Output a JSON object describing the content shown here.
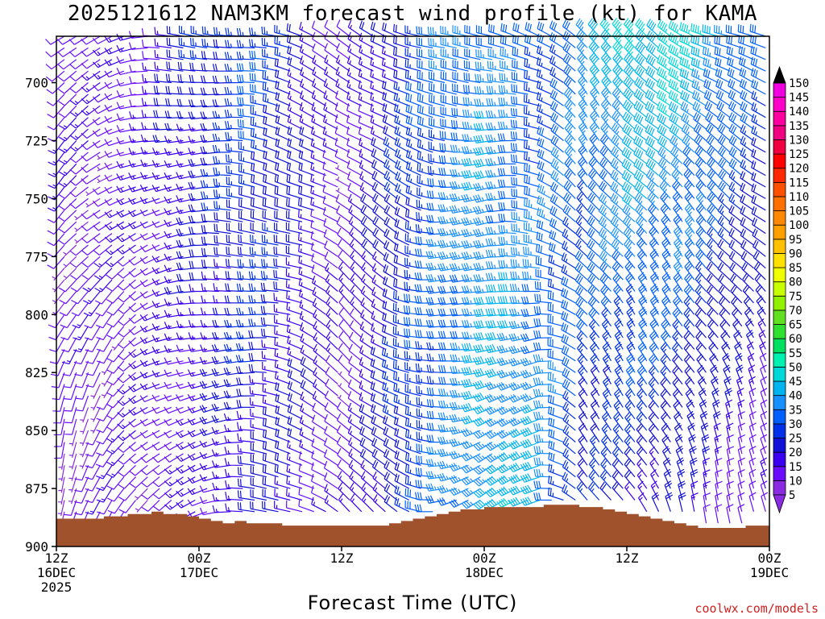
{
  "title": "2025121612 NAM3KM forecast wind profile (kt) for KAMA",
  "xlabel": "Forecast Time (UTC)",
  "credit": "coolwx.com/models",
  "colors": {
    "terrain": "#a0522d",
    "frame": "#000000"
  },
  "colorbar": {
    "levels": [
      5,
      10,
      15,
      20,
      25,
      30,
      35,
      40,
      45,
      50,
      55,
      60,
      65,
      70,
      75,
      80,
      85,
      90,
      95,
      100,
      105,
      110,
      115,
      120,
      125,
      130,
      135,
      140,
      145,
      150
    ],
    "colors": [
      "#8a2be2",
      "#6a0dff",
      "#3a00f0",
      "#1010d8",
      "#0030e8",
      "#0060ff",
      "#1890ff",
      "#00b4f0",
      "#00d8d8",
      "#00f0b0",
      "#00e060",
      "#30e030",
      "#60e020",
      "#90f000",
      "#c8ff00",
      "#f0ff00",
      "#ffe000",
      "#ffc000",
      "#ffa000",
      "#ff8800",
      "#ff7000",
      "#ff5000",
      "#ff2800",
      "#ff0000",
      "#f00040",
      "#f00080",
      "#ff00a0",
      "#ff00c8",
      "#f000e0",
      "#000000"
    ]
  },
  "chart_data": {
    "type": "wind-barb-profile",
    "title": "2025121612 NAM3KM forecast wind profile (kt) for KAMA",
    "xlabel": "Forecast Time (UTC)",
    "ylabel": "",
    "x_range_hours": [
      0,
      60
    ],
    "y_range_hPa": [
      900,
      680
    ],
    "y_axis": "pressure (inverted)",
    "x_ticks": [
      {
        "hour": 0,
        "lines": [
          "12Z",
          "16DEC",
          "2025"
        ]
      },
      {
        "hour": 12,
        "lines": [
          "00Z",
          "17DEC"
        ]
      },
      {
        "hour": 24,
        "lines": [
          "12Z"
        ]
      },
      {
        "hour": 36,
        "lines": [
          "00Z",
          "18DEC"
        ]
      },
      {
        "hour": 48,
        "lines": [
          "12Z"
        ]
      },
      {
        "hour": 60,
        "lines": [
          "00Z",
          "19DEC"
        ]
      }
    ],
    "y_ticks": [
      700,
      725,
      750,
      775,
      800,
      825,
      850,
      875,
      900
    ],
    "units": "kt",
    "surface_pressure_hPa": [
      [
        0,
        888
      ],
      [
        1,
        888
      ],
      [
        2,
        888
      ],
      [
        3,
        888
      ],
      [
        4,
        887
      ],
      [
        5,
        887
      ],
      [
        6,
        886
      ],
      [
        7,
        886
      ],
      [
        8,
        885
      ],
      [
        9,
        886
      ],
      [
        10,
        886
      ],
      [
        11,
        887
      ],
      [
        12,
        888
      ],
      [
        13,
        889
      ],
      [
        14,
        890
      ],
      [
        15,
        889
      ],
      [
        16,
        890
      ],
      [
        17,
        890
      ],
      [
        18,
        890
      ],
      [
        19,
        891
      ],
      [
        20,
        891
      ],
      [
        21,
        891
      ],
      [
        22,
        891
      ],
      [
        23,
        891
      ],
      [
        24,
        891
      ],
      [
        25,
        891
      ],
      [
        26,
        891
      ],
      [
        27,
        891
      ],
      [
        28,
        890
      ],
      [
        29,
        889
      ],
      [
        30,
        888
      ],
      [
        31,
        887
      ],
      [
        32,
        886
      ],
      [
        33,
        885
      ],
      [
        34,
        884
      ],
      [
        35,
        884
      ],
      [
        36,
        883
      ],
      [
        37,
        883
      ],
      [
        38,
        883
      ],
      [
        39,
        883
      ],
      [
        40,
        883
      ],
      [
        41,
        882
      ],
      [
        42,
        882
      ],
      [
        43,
        882
      ],
      [
        44,
        883
      ],
      [
        45,
        883
      ],
      [
        46,
        884
      ],
      [
        47,
        885
      ],
      [
        48,
        886
      ],
      [
        49,
        887
      ],
      [
        50,
        888
      ],
      [
        51,
        889
      ],
      [
        52,
        890
      ],
      [
        53,
        891
      ],
      [
        54,
        892
      ],
      [
        55,
        892
      ],
      [
        56,
        892
      ],
      [
        57,
        892
      ],
      [
        58,
        891
      ],
      [
        59,
        891
      ],
      [
        60,
        892
      ]
    ],
    "levels_hPa": [
      680,
      685,
      690,
      695,
      700,
      705,
      710,
      715,
      720,
      725,
      730,
      735,
      740,
      745,
      750,
      755,
      760,
      765,
      770,
      775,
      780,
      785,
      790,
      795,
      800,
      805,
      810,
      815,
      820,
      825,
      830,
      835,
      840,
      845,
      850,
      855,
      860,
      865,
      870,
      875,
      880,
      885,
      890
    ],
    "wind_keyframes": [
      {
        "hour": 0,
        "low": {
          "dir": 190,
          "spd": 8
        },
        "high": {
          "dir": 235,
          "spd": 12
        }
      },
      {
        "hour": 4,
        "low": {
          "dir": 200,
          "spd": 10
        },
        "high": {
          "dir": 250,
          "spd": 10
        }
      },
      {
        "hour": 8,
        "low": {
          "dir": 230,
          "spd": 10
        },
        "high": {
          "dir": 270,
          "spd": 15
        }
      },
      {
        "hour": 12,
        "low": {
          "dir": 250,
          "spd": 12
        },
        "high": {
          "dir": 275,
          "spd": 22
        }
      },
      {
        "hour": 16,
        "low": {
          "dir": 270,
          "spd": 18
        },
        "high": {
          "dir": 280,
          "spd": 28
        }
      },
      {
        "hour": 20,
        "low": {
          "dir": 290,
          "spd": 15
        },
        "high": {
          "dir": 290,
          "spd": 20
        }
      },
      {
        "hour": 24,
        "low": {
          "dir": 320,
          "spd": 10
        },
        "high": {
          "dir": 300,
          "spd": 10
        }
      },
      {
        "hour": 28,
        "low": {
          "dir": 300,
          "spd": 22
        },
        "high": {
          "dir": 300,
          "spd": 20
        }
      },
      {
        "hour": 32,
        "low": {
          "dir": 260,
          "spd": 30
        },
        "high": {
          "dir": 280,
          "spd": 30
        }
      },
      {
        "hour": 36,
        "low": {
          "dir": 240,
          "spd": 40
        },
        "high": {
          "dir": 275,
          "spd": 35
        }
      },
      {
        "hour": 40,
        "low": {
          "dir": 240,
          "spd": 40
        },
        "high": {
          "dir": 300,
          "spd": 25
        }
      },
      {
        "hour": 44,
        "low": {
          "dir": 320,
          "spd": 20
        },
        "high": {
          "dir": 320,
          "spd": 35
        }
      },
      {
        "hour": 48,
        "low": {
          "dir": 330,
          "spd": 18
        },
        "high": {
          "dir": 310,
          "spd": 45
        }
      },
      {
        "hour": 52,
        "low": {
          "dir": 340,
          "spd": 15
        },
        "high": {
          "dir": 305,
          "spd": 45
        }
      },
      {
        "hour": 56,
        "low": {
          "dir": 350,
          "spd": 10
        },
        "high": {
          "dir": 290,
          "spd": 35
        }
      },
      {
        "hour": 60,
        "low": {
          "dir": 355,
          "spd": 8
        },
        "high": {
          "dir": 280,
          "spd": 25
        }
      }
    ]
  }
}
